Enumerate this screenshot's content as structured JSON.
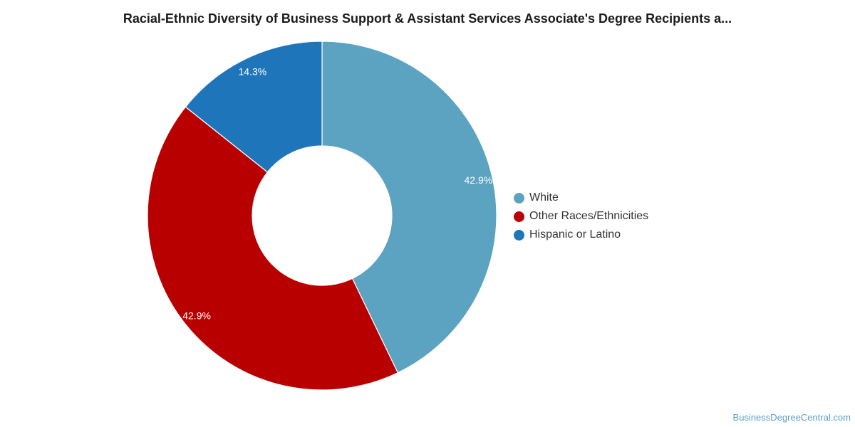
{
  "chart_data": {
    "type": "pie",
    "title": "Racial-Ethnic Diversity of Business Support & Assistant Services Associate's Degree Recipients a...",
    "slices": [
      {
        "name": "White",
        "value": 42.9,
        "label": "42.9%",
        "color": "#5ba3c0"
      },
      {
        "name": "Other Races/Ethnicities",
        "value": 42.9,
        "label": "42.9%",
        "color": "#b90000"
      },
      {
        "name": "Hispanic or Latino",
        "value": 14.3,
        "label": "14.3%",
        "color": "#1f75ba"
      }
    ],
    "donut": true,
    "legend_position": "right"
  },
  "footer": {
    "source": "BusinessDegreeCentral.com"
  }
}
